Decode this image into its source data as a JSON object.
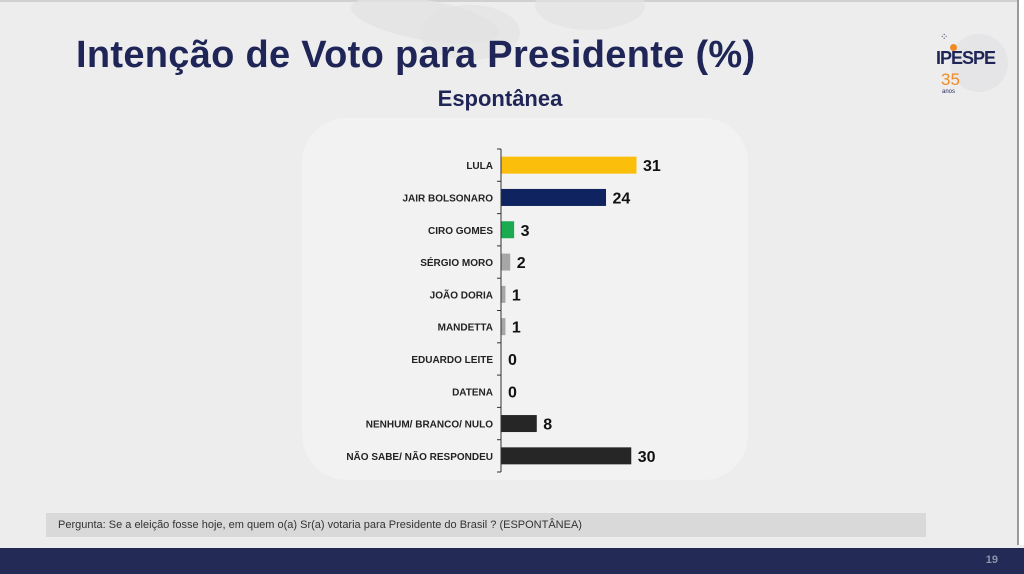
{
  "header": {
    "title": "Intenção de Voto para Presidente (%)",
    "subtitle": "Espontânea"
  },
  "logo": {
    "name": "IPESPE",
    "years": "35",
    "years_label": "anos",
    "icon": "ipespe-logo-icon"
  },
  "footer": {
    "question": "Pergunta:  Se a eleição fosse hoje, em quem o(a) Sr(a) votaria para  Presidente do Brasil ? (ESPONTÂNEA)",
    "page_number": "19"
  },
  "chart_data": {
    "type": "bar",
    "orientation": "horizontal",
    "title": "Intenção de Voto para Presidente (%)",
    "subtitle": "Espontânea",
    "xlabel": "",
    "ylabel": "",
    "xlim": [
      0,
      31
    ],
    "grid": false,
    "legend": "none",
    "categories": [
      "LULA",
      "JAIR BOLSONARO",
      "CIRO GOMES",
      "SÉRGIO MORO",
      "JOÃO DORIA",
      "MANDETTA",
      "EDUARDO LEITE",
      "DATENA",
      "NENHUM/ BRANCO/ NULO",
      "NÃO SABE/ NÃO RESPONDEU"
    ],
    "values": [
      31,
      24,
      3,
      2,
      1,
      1,
      0,
      0,
      8,
      30
    ],
    "bar_display_values": [
      31,
      24,
      2.9,
      2,
      0.9,
      0.9,
      0,
      0,
      8.1,
      29.8
    ],
    "data_labels": [
      "31",
      "24",
      "3",
      "2",
      "1",
      "1",
      "0",
      "0",
      "8",
      "30"
    ],
    "colors": [
      "#fbbf0b",
      "#0f2360",
      "#1aab50",
      "#a6a6a6",
      "#a6a6a6",
      "#a6a6a6",
      "#a6a6a6",
      "#a6a6a6",
      "#262626",
      "#262626"
    ]
  }
}
